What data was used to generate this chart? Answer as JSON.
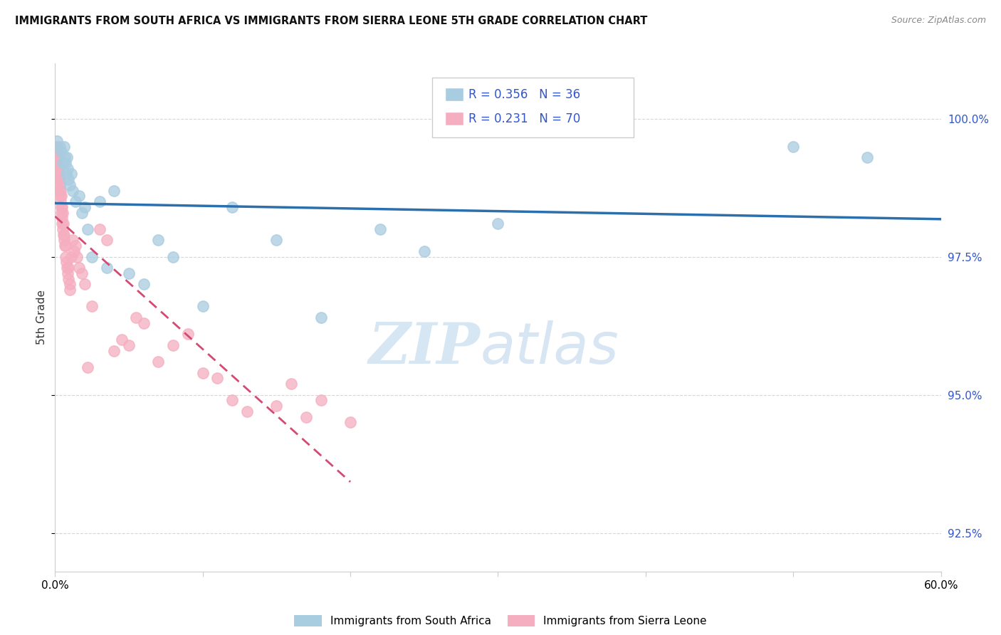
{
  "title": "IMMIGRANTS FROM SOUTH AFRICA VS IMMIGRANTS FROM SIERRA LEONE 5TH GRADE CORRELATION CHART",
  "source": "Source: ZipAtlas.com",
  "ylabel": "5th Grade",
  "x_min": 0.0,
  "x_max": 60.0,
  "y_min": 91.8,
  "y_max": 101.0,
  "y_ticks": [
    92.5,
    95.0,
    97.5,
    100.0
  ],
  "x_ticks": [
    0.0,
    10.0,
    20.0,
    30.0,
    40.0,
    50.0,
    60.0
  ],
  "blue_R": 0.356,
  "blue_N": 36,
  "pink_R": 0.231,
  "pink_N": 70,
  "blue_color": "#a8cce0",
  "pink_color": "#f5aec0",
  "blue_line_color": "#2c6fad",
  "pink_line_color": "#d44a72",
  "legend_label_blue": "Immigrants from South Africa",
  "legend_label_pink": "Immigrants from Sierra Leone",
  "watermark_zip": "ZIP",
  "watermark_atlas": "atlas",
  "blue_points_x": [
    0.15,
    0.3,
    0.4,
    0.5,
    0.6,
    0.65,
    0.7,
    0.75,
    0.8,
    0.85,
    0.9,
    1.0,
    1.1,
    1.2,
    1.4,
    1.6,
    1.8,
    2.0,
    2.2,
    2.5,
    3.0,
    3.5,
    4.0,
    5.0,
    6.0,
    7.0,
    8.0,
    10.0,
    12.0,
    15.0,
    18.0,
    22.0,
    25.0,
    30.0,
    50.0,
    55.0
  ],
  "blue_points_y": [
    99.6,
    99.5,
    99.4,
    99.2,
    99.5,
    99.3,
    99.2,
    99.0,
    99.3,
    99.1,
    98.9,
    98.8,
    99.0,
    98.7,
    98.5,
    98.6,
    98.3,
    98.4,
    98.0,
    97.5,
    98.5,
    97.3,
    98.7,
    97.2,
    97.0,
    97.8,
    97.5,
    96.6,
    98.4,
    97.8,
    96.4,
    98.0,
    97.6,
    98.1,
    99.5,
    99.3
  ],
  "pink_points_x": [
    0.05,
    0.08,
    0.1,
    0.12,
    0.15,
    0.15,
    0.18,
    0.2,
    0.2,
    0.22,
    0.25,
    0.25,
    0.28,
    0.3,
    0.3,
    0.32,
    0.35,
    0.35,
    0.38,
    0.4,
    0.4,
    0.42,
    0.45,
    0.45,
    0.48,
    0.5,
    0.5,
    0.55,
    0.55,
    0.6,
    0.6,
    0.65,
    0.7,
    0.7,
    0.75,
    0.8,
    0.85,
    0.9,
    0.9,
    1.0,
    1.0,
    1.1,
    1.2,
    1.3,
    1.4,
    1.5,
    1.6,
    1.8,
    2.0,
    2.2,
    2.5,
    3.0,
    3.5,
    4.0,
    4.5,
    5.0,
    5.5,
    6.0,
    7.0,
    8.0,
    9.0,
    10.0,
    11.0,
    12.0,
    13.0,
    15.0,
    16.0,
    17.0,
    18.0,
    20.0
  ],
  "pink_points_y": [
    99.5,
    99.4,
    99.3,
    99.5,
    99.4,
    99.2,
    99.3,
    99.2,
    99.0,
    99.1,
    98.9,
    99.0,
    98.8,
    98.7,
    98.9,
    98.8,
    98.6,
    98.7,
    98.5,
    98.4,
    98.6,
    98.3,
    98.2,
    98.4,
    98.1,
    98.0,
    98.3,
    97.9,
    98.1,
    97.8,
    97.9,
    97.7,
    97.5,
    97.7,
    97.4,
    97.3,
    97.2,
    97.1,
    97.3,
    97.0,
    96.9,
    97.5,
    97.8,
    97.6,
    97.7,
    97.5,
    97.3,
    97.2,
    97.0,
    95.5,
    96.6,
    98.0,
    97.8,
    95.8,
    96.0,
    95.9,
    96.4,
    96.3,
    95.6,
    95.9,
    96.1,
    95.4,
    95.3,
    94.9,
    94.7,
    94.8,
    95.2,
    94.6,
    94.9,
    94.5
  ]
}
